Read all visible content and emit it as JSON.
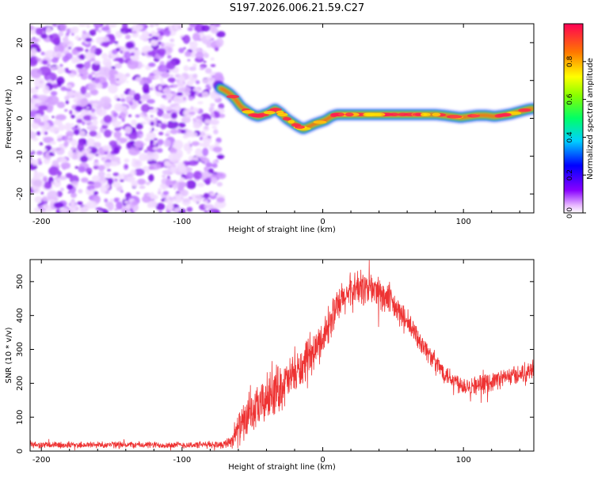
{
  "title": "S197.2026.006.21.59.C27",
  "chart_data": [
    {
      "type": "heatmap",
      "xlabel": "Height of straight line (km)",
      "ylabel": "Frequency (Hz)",
      "xlim": [
        -208,
        150
      ],
      "ylim": [
        -25,
        25
      ],
      "xticks": [
        -200,
        -100,
        0,
        100
      ],
      "yticks": [
        -20,
        -10,
        0,
        10,
        20
      ],
      "noise_region": {
        "x_from": -208,
        "x_to": -72
      },
      "ridge": {
        "x": [
          -73,
          -70,
          -66,
          -62,
          -58,
          -54,
          -50,
          -46,
          -42,
          -38,
          -34,
          -30,
          -26,
          -22,
          -18,
          -14,
          -10,
          -6,
          -2,
          2,
          6,
          10,
          20,
          40,
          60,
          80,
          86,
          92,
          98,
          104,
          110,
          116,
          122,
          128,
          134,
          140,
          146,
          150
        ],
        "freq": [
          8.0,
          7.5,
          6.5,
          5.0,
          3.0,
          2.0,
          1.0,
          0.5,
          1.0,
          1.5,
          2.5,
          1.5,
          0.0,
          -1.0,
          -2.0,
          -2.8,
          -2.2,
          -1.5,
          -1.0,
          -0.5,
          0.5,
          1.0,
          1.0,
          1.0,
          1.0,
          1.0,
          0.8,
          0.5,
          0.2,
          0.5,
          0.8,
          0.8,
          0.5,
          0.8,
          1.2,
          1.8,
          2.4,
          2.6
        ]
      },
      "colorbar": {
        "label": "Normalized spectral amplitude",
        "range": [
          0,
          1
        ],
        "ticks": [
          "0.0",
          "0.2",
          "0.4",
          "0.6",
          "0.8"
        ],
        "tick_values": [
          0,
          0.2,
          0.4,
          0.6,
          0.8
        ]
      }
    },
    {
      "type": "line",
      "xlabel": "Height of straight line (km)",
      "ylabel": "SNR (10 * v/v)",
      "xlim": [
        -208,
        150
      ],
      "ylim": [
        0,
        565
      ],
      "xticks": [
        -200,
        -100,
        0,
        100
      ],
      "yticks": [
        0,
        100,
        200,
        300,
        400,
        500
      ],
      "series": [
        {
          "name": "SNR",
          "color": "#ee3333",
          "x": [
            -208,
            -180,
            -150,
            -120,
            -90,
            -70,
            -64,
            -60,
            -55,
            -50,
            -45,
            -40,
            -35,
            -30,
            -25,
            -20,
            -15,
            -10,
            -5,
            0,
            5,
            10,
            15,
            20,
            25,
            30,
            35,
            40,
            45,
            50,
            55,
            60,
            65,
            70,
            75,
            80,
            85,
            90,
            95,
            100,
            105,
            110,
            115,
            120,
            125,
            130,
            135,
            140,
            145,
            150
          ],
          "envelope": [
            18,
            18,
            19,
            18,
            18,
            20,
            35,
            65,
            90,
            110,
            130,
            155,
            175,
            190,
            205,
            225,
            245,
            270,
            300,
            335,
            380,
            420,
            450,
            470,
            480,
            482,
            478,
            470,
            450,
            430,
            405,
            378,
            350,
            322,
            290,
            262,
            238,
            220,
            205,
            195,
            193,
            195,
            198,
            205,
            212,
            218,
            222,
            228,
            234,
            245
          ],
          "noise": [
            10,
            10,
            10,
            10,
            10,
            12,
            25,
            50,
            55,
            60,
            65,
            70,
            75,
            70,
            65,
            60,
            60,
            55,
            55,
            55,
            55,
            55,
            55,
            55,
            55,
            55,
            55,
            50,
            45,
            45,
            40,
            40,
            35,
            35,
            30,
            30,
            30,
            30,
            30,
            30,
            28,
            28,
            28,
            28,
            28,
            28,
            28,
            28,
            28,
            28
          ]
        }
      ]
    }
  ]
}
